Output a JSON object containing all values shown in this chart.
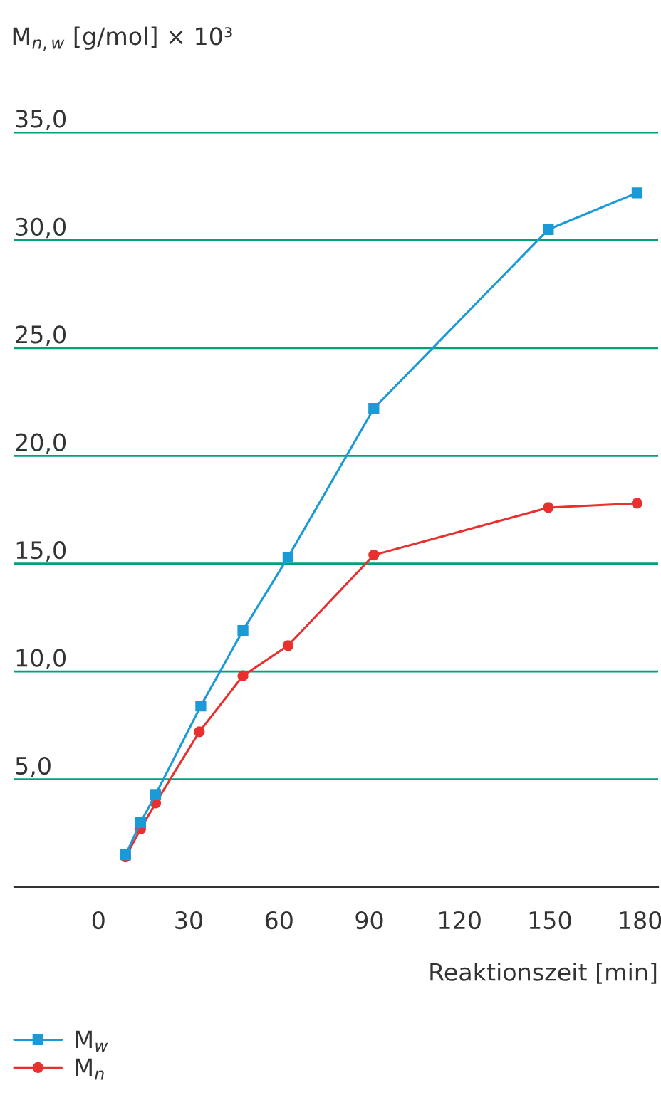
{
  "chart_data": {
    "type": "line",
    "ylabel": "M$_{n,w}$ [g/mol] × 10³",
    "xlabel": "Reaktionszeit [min]",
    "xlim": [
      -28,
      186
    ],
    "xticks": [
      0,
      30,
      60,
      90,
      120,
      150,
      180
    ],
    "ylim": [
      0,
      35
    ],
    "yticks": [
      {
        "value": 5,
        "label": "5,0"
      },
      {
        "value": 10,
        "label": "10,0"
      },
      {
        "value": 15,
        "label": "15,0"
      },
      {
        "value": 20,
        "label": "20,0"
      },
      {
        "value": 25,
        "label": "25,0"
      },
      {
        "value": 30,
        "label": "30,0"
      },
      {
        "value": 35,
        "label": "35,0"
      }
    ],
    "grid": "y",
    "legend": "bottom left",
    "line_style": "solid",
    "series": [
      {
        "name": "M$_{w}$",
        "color": "#1a9ad6",
        "marker": "square",
        "x": [
          9,
          14,
          19,
          34,
          48,
          63,
          91.5,
          149.5,
          179
        ],
        "values": [
          1.5,
          3.0,
          4.3,
          8.4,
          11.9,
          15.3,
          22.2,
          30.5,
          32.2
        ]
      },
      {
        "name": "M$_{n}$",
        "color": "#e8312f",
        "marker": "circle",
        "x": [
          9,
          14,
          19,
          33.5,
          48,
          63,
          91.5,
          149.5,
          179
        ],
        "values": [
          1.4,
          2.7,
          3.9,
          7.2,
          9.8,
          11.2,
          15.4,
          17.6,
          17.8
        ]
      }
    ]
  }
}
